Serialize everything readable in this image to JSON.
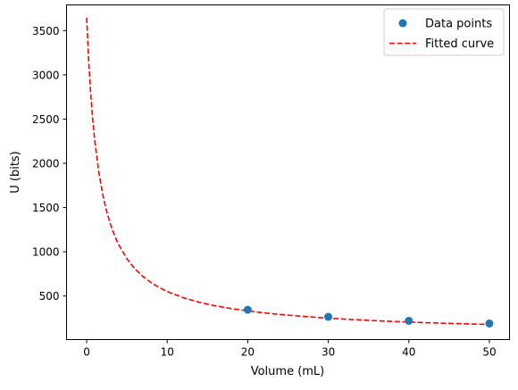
{
  "chart_data": {
    "type": "scatter",
    "xlabel": "Volume (mL)",
    "ylabel": "U (bits)",
    "xlim": [
      -2.5,
      52.5
    ],
    "ylim": [
      8,
      3790
    ],
    "x_ticks": [
      0,
      10,
      20,
      30,
      40,
      50
    ],
    "y_ticks": [
      500,
      1000,
      1500,
      2000,
      2500,
      3000,
      3500
    ],
    "grid": false,
    "legend_position": "top-right",
    "series": [
      {
        "name": "Data points",
        "kind": "markers",
        "color": "#1f77b4",
        "x": [
          20,
          30,
          40,
          50
        ],
        "y": [
          345,
          265,
          220,
          190
        ]
      },
      {
        "name": "Fitted curve",
        "kind": "dashed-line",
        "color": "#ff0000",
        "x": [
          0,
          0.25,
          0.5,
          0.75,
          1,
          1.5,
          2,
          2.5,
          3,
          3.5,
          4,
          5,
          6,
          7,
          8,
          9,
          10,
          12,
          14,
          16,
          18,
          20,
          22.5,
          25,
          27.5,
          30,
          32.5,
          35,
          37.5,
          40,
          42.5,
          45,
          47.5,
          50
        ],
        "y": [
          3645,
          3160,
          2790,
          2498,
          2262,
          1904,
          1646,
          1451,
          1299,
          1176,
          1075,
          920,
          807,
          720,
          652,
          597,
          551,
          481,
          429,
          389,
          358,
          332,
          305,
          284,
          266,
          250,
          237,
          225,
          215,
          206,
          198,
          191,
          185,
          179
        ]
      }
    ]
  }
}
